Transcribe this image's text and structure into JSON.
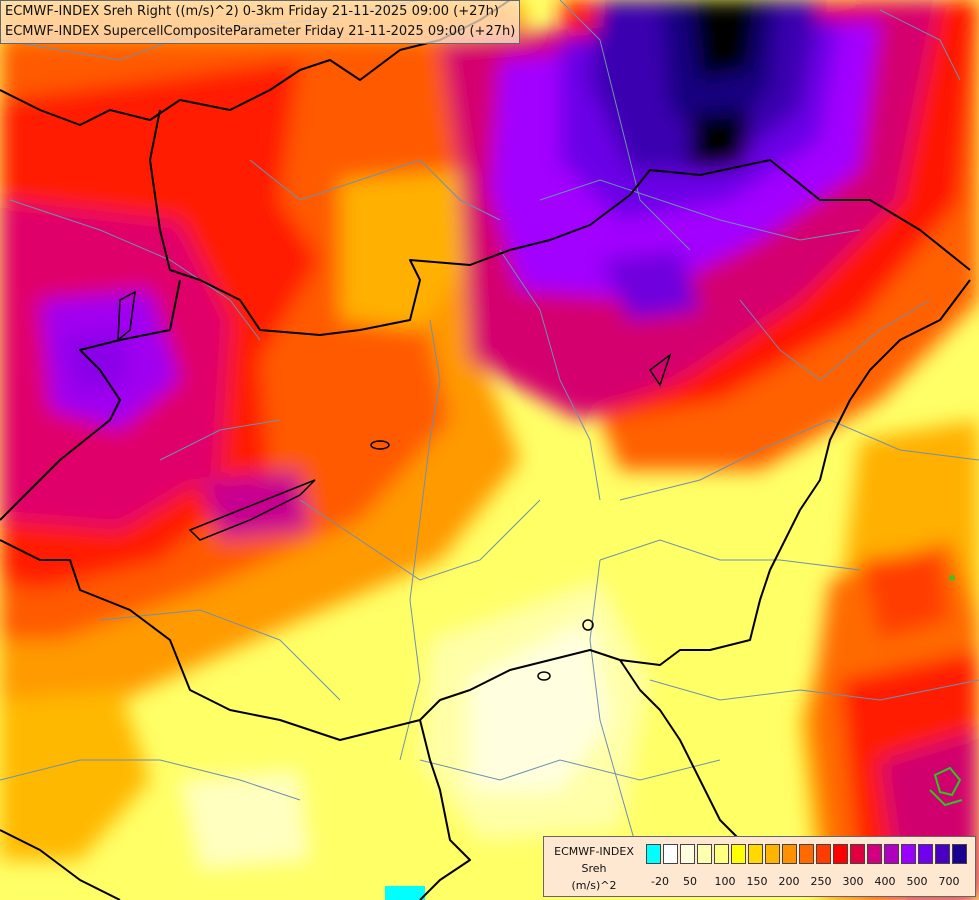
{
  "title_lines": [
    "ECMWF-INDEX Sreh Right ((m/s)^2) 0-3km Friday 21-11-2025 09:00 (+27h)",
    "ECMWF-INDEX SupercellCompositeParameter Friday 21-11-2025 09:00 (+27h)"
  ],
  "legend": {
    "title_lines": [
      "ECMWF-INDEX",
      "Sreh",
      "(m/s)^2"
    ],
    "colors": [
      "#00ffff",
      "#ffffff",
      "#ffffe0",
      "#ffffb0",
      "#ffff80",
      "#ffff00",
      "#ffd800",
      "#ffb400",
      "#ff9000",
      "#ff6a00",
      "#ff3c00",
      "#ff0000",
      "#e00040",
      "#d00080",
      "#b000c0",
      "#9a00ff",
      "#7000ee",
      "#4a00c0",
      "#1c0090"
    ],
    "tick_labels": [
      "-20",
      "50",
      "100",
      "150",
      "200",
      "250",
      "300",
      "400",
      "500",
      "700"
    ]
  },
  "colors": {
    "background": "#ffff66",
    "borders": "#000000",
    "regions": "#6e8fb0",
    "max": "#000000"
  }
}
